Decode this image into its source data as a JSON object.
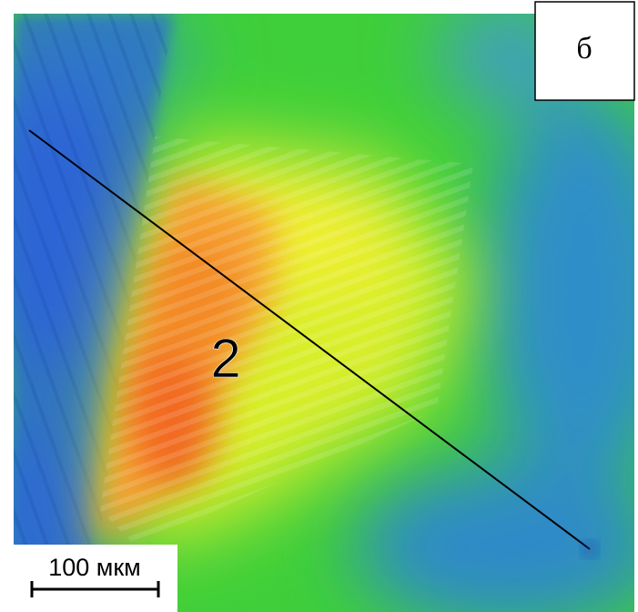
{
  "panel_label": "б",
  "region_label": "2",
  "scale_bar": {
    "label": "100 мкм"
  }
}
